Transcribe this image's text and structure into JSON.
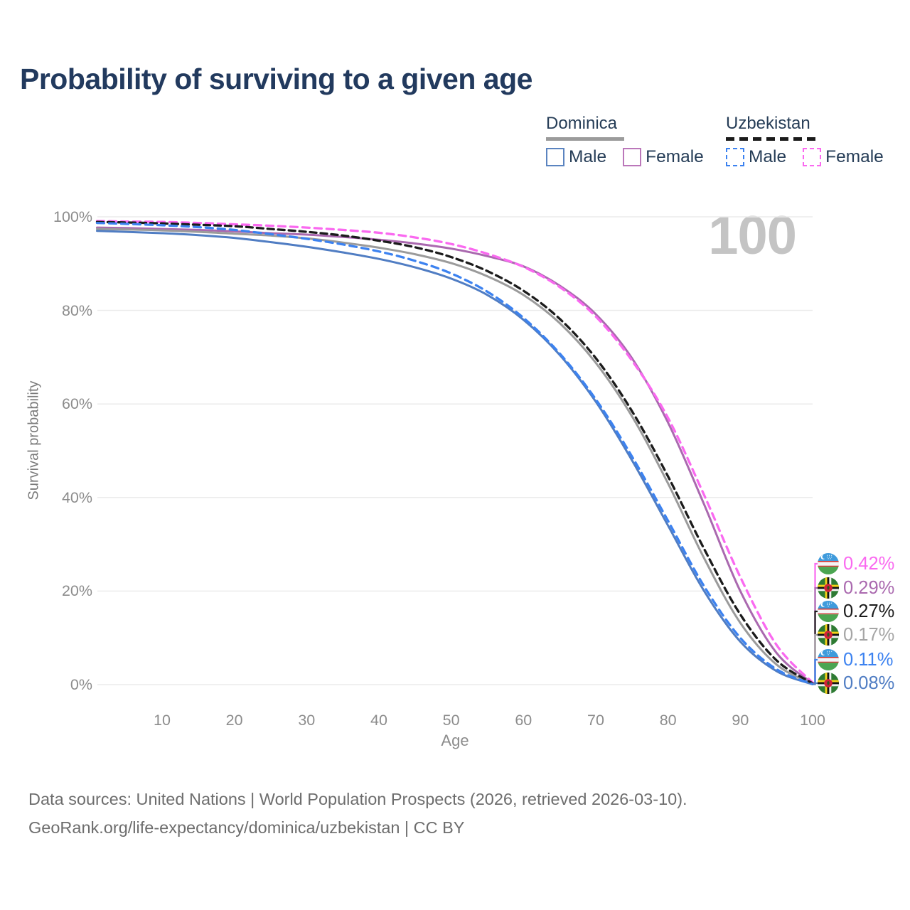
{
  "title": "Probability of surviving to a given age",
  "legend": {
    "groups": [
      {
        "name": "Dominica",
        "line_style": "solid",
        "underline_color": "#9b9b9b",
        "items": [
          {
            "label": "Male",
            "color": "#5b84c0",
            "dashed": false
          },
          {
            "label": "Female",
            "color": "#bb77ba",
            "dashed": false
          }
        ]
      },
      {
        "name": "Uzbekistan",
        "line_style": "dashed",
        "underline_color": "#1b1b1b",
        "items": [
          {
            "label": "Male",
            "color": "#3c82f0",
            "dashed": true
          },
          {
            "label": "Female",
            "color": "#fa69f0",
            "dashed": true
          }
        ]
      }
    ]
  },
  "chart_data": {
    "type": "line",
    "title": "Probability of surviving to a given age",
    "xlabel": "Age",
    "ylabel": "Survival probability",
    "watermark": "100",
    "xlim": [
      1,
      100
    ],
    "ylim": [
      0,
      100
    ],
    "grid": "horizontal",
    "xticks": [
      10,
      20,
      30,
      40,
      50,
      60,
      70,
      80,
      90,
      100
    ],
    "yticks": [
      {
        "pct": 0,
        "label": "0%"
      },
      {
        "pct": 20,
        "label": "20%"
      },
      {
        "pct": 40,
        "label": "40%"
      },
      {
        "pct": 60,
        "label": "60%"
      },
      {
        "pct": 80,
        "label": "80%"
      },
      {
        "pct": 100,
        "label": "100%"
      }
    ],
    "ages": [
      1,
      5,
      10,
      15,
      20,
      25,
      30,
      35,
      40,
      45,
      50,
      55,
      60,
      65,
      70,
      75,
      80,
      85,
      90,
      95,
      100
    ],
    "series": [
      {
        "name": "Uzbekistan Female",
        "country": "Uzbekistan",
        "sex": "female",
        "color": "#fa69f0",
        "dash": "10 7",
        "width": 3.3,
        "values": [
          99.1,
          99.0,
          98.9,
          98.7,
          98.4,
          98.1,
          97.7,
          97.2,
          96.6,
          95.6,
          94.2,
          92.1,
          89.3,
          85.0,
          78.7,
          69.3,
          57.0,
          40.5,
          23.0,
          8.5,
          0.42
        ]
      },
      {
        "name": "Dominica Female",
        "country": "Dominica",
        "sex": "female",
        "color": "#aa69af",
        "dash": null,
        "width": 3,
        "values": [
          97.7,
          97.6,
          97.4,
          97.2,
          96.9,
          96.5,
          96.2,
          95.7,
          95.1,
          94.3,
          93.2,
          91.6,
          89.4,
          85.3,
          79.2,
          69.8,
          56.0,
          38.5,
          20.0,
          6.8,
          0.29
        ]
      },
      {
        "name": "Uzbekistan both sexes",
        "country": "Uzbekistan",
        "sex": "both",
        "color": "#1b1b1b",
        "dash": "9 6",
        "width": 3.3,
        "values": [
          98.9,
          98.8,
          98.6,
          98.3,
          98.0,
          97.4,
          96.8,
          96.0,
          94.9,
          93.5,
          91.4,
          88.4,
          84.2,
          78.2,
          69.8,
          58.5,
          44.5,
          29.0,
          15.0,
          5.2,
          0.27
        ]
      },
      {
        "name": "Dominica both sexes",
        "country": "Dominica",
        "sex": "both",
        "color": "#9b9b9b",
        "dash": null,
        "width": 3,
        "values": [
          97.4,
          97.3,
          97.1,
          96.8,
          96.4,
          96.0,
          95.4,
          94.5,
          93.4,
          92.0,
          90.1,
          87.3,
          83.3,
          77.3,
          68.8,
          57.4,
          43.0,
          27.0,
          13.2,
          4.3,
          0.17
        ]
      },
      {
        "name": "Uzbekistan Male",
        "country": "Uzbekistan",
        "sex": "male",
        "color": "#3c82f0",
        "dash": "10 7",
        "width": 3.3,
        "values": [
          98.7,
          98.5,
          98.2,
          97.8,
          97.2,
          96.3,
          95.3,
          94.1,
          92.6,
          90.6,
          87.9,
          84.0,
          78.4,
          70.8,
          61.0,
          48.8,
          35.0,
          21.0,
          10.0,
          3.3,
          0.11
        ]
      },
      {
        "name": "Dominica Male",
        "country": "Dominica",
        "sex": "male",
        "color": "#507dc3",
        "dash": null,
        "width": 3,
        "values": [
          97.0,
          96.8,
          96.5,
          96.1,
          95.5,
          94.6,
          93.6,
          92.4,
          91.0,
          89.2,
          86.8,
          83.3,
          78.0,
          70.5,
          60.5,
          48.0,
          34.0,
          20.0,
          9.2,
          2.9,
          0.08
        ]
      }
    ],
    "end_labels": [
      {
        "value": "0.42%",
        "flag": "uzbekistan",
        "color": "#fa69f0"
      },
      {
        "value": "0.29%",
        "flag": "dominica",
        "color": "#aa69af"
      },
      {
        "value": "0.27%",
        "flag": "uzbekistan",
        "color": "#1b1b1b"
      },
      {
        "value": "0.17%",
        "flag": "dominica",
        "color": "#a5a5a5"
      },
      {
        "value": "0.11%",
        "flag": "uzbekistan",
        "color": "#3c82f0"
      },
      {
        "value": "0.08%",
        "flag": "dominica",
        "color": "#507dc3"
      }
    ]
  },
  "footer": {
    "line1": "Data sources: United Nations | World Population Prospects (2026, retrieved 2026-03-10).",
    "line2": "GeoRank.org/life-expectancy/dominica/uzbekistan | CC BY"
  }
}
